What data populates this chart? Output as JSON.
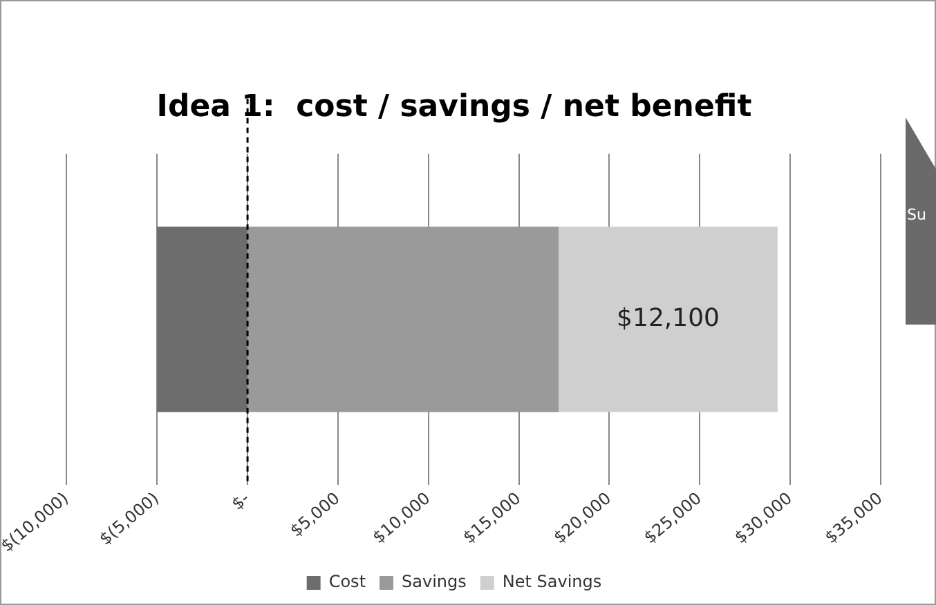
{
  "chart_data": {
    "type": "bar",
    "orientation": "horizontal",
    "stacked": true,
    "title": "Idea 1:  cost / savings / net benefit",
    "categories": [
      null
    ],
    "series": [
      {
        "name": "Cost",
        "color": "#6d6d6d",
        "values": [
          -5000
        ]
      },
      {
        "name": "Savings",
        "color": "#9a9a9a",
        "values": [
          17200
        ]
      },
      {
        "name": "Net Savings",
        "color": "#cfcfcf",
        "values": [
          12100
        ],
        "value_labels": [
          "$12,100"
        ]
      }
    ],
    "xlim": [
      -10000,
      35000
    ],
    "xticks": [
      {
        "value": -10000,
        "label": "$(10,000)"
      },
      {
        "value": -5000,
        "label": "$(5,000)"
      },
      {
        "value": 0,
        "label": "$-"
      },
      {
        "value": 5000,
        "label": "$5,000"
      },
      {
        "value": 10000,
        "label": "$10,000"
      },
      {
        "value": 15000,
        "label": "$15,000"
      },
      {
        "value": 20000,
        "label": "$20,000"
      },
      {
        "value": 25000,
        "label": "$25,000"
      },
      {
        "value": 30000,
        "label": "$30,000"
      },
      {
        "value": 35000,
        "label": "$35,000"
      }
    ],
    "ref_lines": [
      {
        "axis": "x",
        "value": 0,
        "color": "#000000",
        "line_style": "dashed"
      }
    ],
    "annotations": [
      "Su"
    ],
    "grid": "x",
    "legend": "bottom"
  }
}
